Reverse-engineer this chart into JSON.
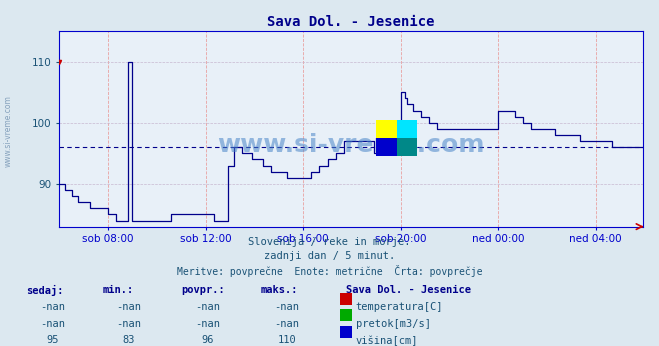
{
  "title": "Sava Dol. - Jesenice",
  "bg_color": "#dce8f0",
  "plot_bg_color": "#e8f0f8",
  "line_color": "#00008b",
  "axis_color": "#0000cc",
  "text_color": "#1a5276",
  "title_color": "#00008b",
  "subtitle1": "Slovenija / reke in morje.",
  "subtitle2": "zadnji dan / 5 minut.",
  "subtitle3": "Meritve: povprečne  Enote: metrične  Črta: povprečje",
  "watermark": "www.si-vreme.com",
  "table_header": "Sava Dol. - Jesenice",
  "col_headers": [
    "sedaj:",
    "min.:",
    "povpr.:",
    "maks.:"
  ],
  "rows": [
    [
      "-nan",
      "-nan",
      "-nan",
      "-nan",
      "temperatura[C]",
      "#cc0000"
    ],
    [
      "-nan",
      "-nan",
      "-nan",
      "-nan",
      "pretok[m3/s]",
      "#00aa00"
    ],
    [
      "95",
      "83",
      "96",
      "110",
      "višina[cm]",
      "#0000cc"
    ]
  ],
  "ylim_min": 83,
  "ylim_max": 115,
  "yticks": [
    90,
    100,
    110
  ],
  "avg_line": 96,
  "xlabel_ticks": [
    "sob 08:00",
    "sob 12:00",
    "sob 16:00",
    "sob 20:00",
    "ned 00:00",
    "ned 04:00"
  ],
  "xtick_positions": [
    24,
    72,
    120,
    168,
    216,
    264
  ],
  "num_points": 288,
  "watermark_color": "#4a86c8",
  "vgrid_color": "#e8a0a0",
  "hgrid_color": "#c8b8d0",
  "avg_line_color": "#00008b",
  "icon_yellow": "#ffff00",
  "icon_cyan": "#00e5ff",
  "icon_blue": "#0000cc"
}
